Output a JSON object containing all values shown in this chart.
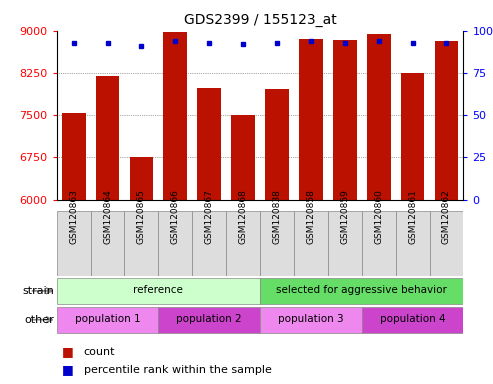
{
  "title": "GDS2399 / 155123_at",
  "samples": [
    "GSM120863",
    "GSM120864",
    "GSM120865",
    "GSM120866",
    "GSM120867",
    "GSM120868",
    "GSM120838",
    "GSM120858",
    "GSM120859",
    "GSM120860",
    "GSM120861",
    "GSM120862"
  ],
  "counts": [
    7540,
    8200,
    6760,
    8980,
    7980,
    7510,
    7960,
    8850,
    8840,
    8940,
    8250,
    8820
  ],
  "percentile_ranks": [
    93,
    93,
    91,
    94,
    93,
    92,
    93,
    94,
    93,
    94,
    93,
    93
  ],
  "ymin": 6000,
  "ymax": 9000,
  "yticks": [
    6000,
    6750,
    7500,
    8250,
    9000
  ],
  "ytick_labels_right": [
    "0",
    "25",
    "50",
    "75",
    "100%"
  ],
  "bar_color": "#bb1100",
  "dot_color": "#0000cc",
  "strain_groups": [
    {
      "label": "reference",
      "start": 0,
      "end": 6,
      "color": "#ccffcc"
    },
    {
      "label": "selected for aggressive behavior",
      "start": 6,
      "end": 12,
      "color": "#66dd66"
    }
  ],
  "other_groups": [
    {
      "label": "population 1",
      "start": 0,
      "end": 3,
      "color": "#ee88ee"
    },
    {
      "label": "population 2",
      "start": 3,
      "end": 6,
      "color": "#cc44cc"
    },
    {
      "label": "population 3",
      "start": 6,
      "end": 9,
      "color": "#ee88ee"
    },
    {
      "label": "population 4",
      "start": 9,
      "end": 12,
      "color": "#cc44cc"
    }
  ],
  "grid_color": "#555555",
  "tick_fontsize": 8,
  "sample_fontsize": 6.5,
  "label_fontsize": 8
}
